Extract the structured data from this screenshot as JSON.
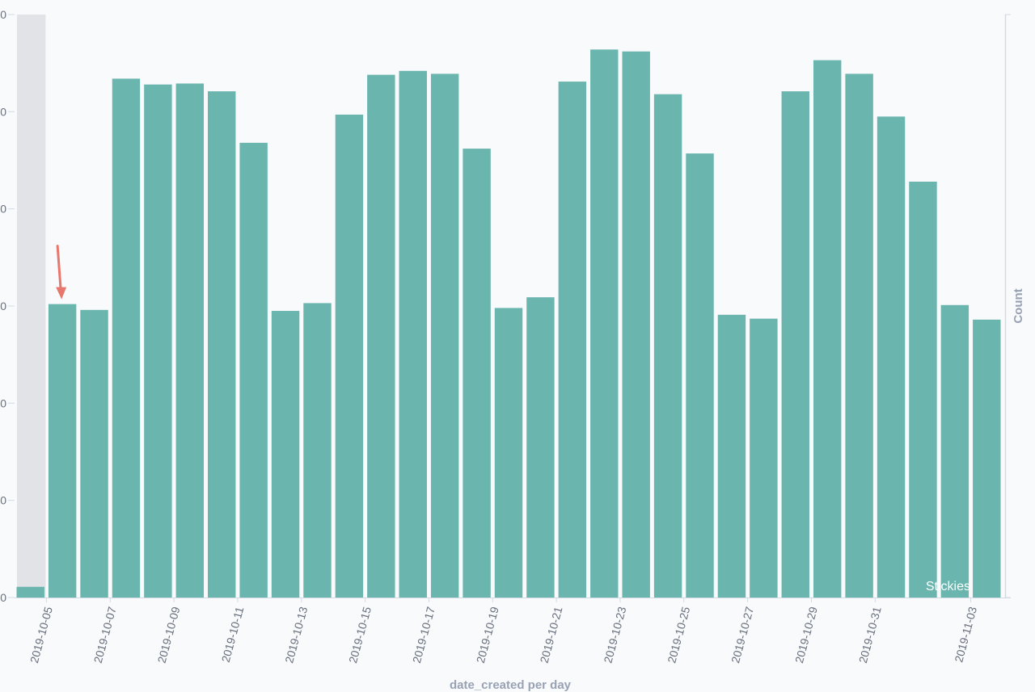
{
  "colors": {
    "bar": "#6bb5af",
    "background": "#f9fafc",
    "highlight_band": "#e2e3e6",
    "axis": "#d3dae6",
    "arrow": "#e7776d",
    "annotation_text": "#ffffff"
  },
  "chart_data": {
    "type": "bar",
    "title": "",
    "xlabel": "date_created per day",
    "ylabel": "Count",
    "y_tick_labels": [
      "0",
      "0",
      "0",
      "0",
      "0",
      "0",
      "0"
    ],
    "ylim": [
      0,
      6
    ],
    "grid": false,
    "x_tick_labels": [
      "2019-10-05",
      "2019-10-07",
      "2019-10-09",
      "2019-10-11",
      "2019-10-13",
      "2019-10-15",
      "2019-10-17",
      "2019-10-19",
      "2019-10-21",
      "2019-10-23",
      "2019-10-25",
      "2019-10-27",
      "2019-10-29",
      "2019-10-31",
      "2019-11-03"
    ],
    "categories": [
      "2019-10-04",
      "2019-10-05",
      "2019-10-06",
      "2019-10-07",
      "2019-10-08",
      "2019-10-09",
      "2019-10-10",
      "2019-10-11",
      "2019-10-12",
      "2019-10-13",
      "2019-10-14",
      "2019-10-15",
      "2019-10-16",
      "2019-10-17",
      "2019-10-18",
      "2019-10-19",
      "2019-10-20",
      "2019-10-21",
      "2019-10-22",
      "2019-10-23",
      "2019-10-24",
      "2019-10-25",
      "2019-10-26",
      "2019-10-27",
      "2019-10-28",
      "2019-10-29",
      "2019-10-30",
      "2019-10-31",
      "2019-11-01",
      "2019-11-02",
      "2019-11-03"
    ],
    "values": [
      0.11,
      3.02,
      2.96,
      5.34,
      5.28,
      5.29,
      5.21,
      4.68,
      2.95,
      3.03,
      4.97,
      5.38,
      5.42,
      5.39,
      4.62,
      2.98,
      3.09,
      5.31,
      5.64,
      5.62,
      5.18,
      4.57,
      2.91,
      2.87,
      5.21,
      5.53,
      5.39,
      4.95,
      4.28,
      3.01,
      2.86
    ],
    "highlight_category": "2019-10-04",
    "arrow_target_category": "2019-10-05",
    "annotation": "Stickies"
  }
}
